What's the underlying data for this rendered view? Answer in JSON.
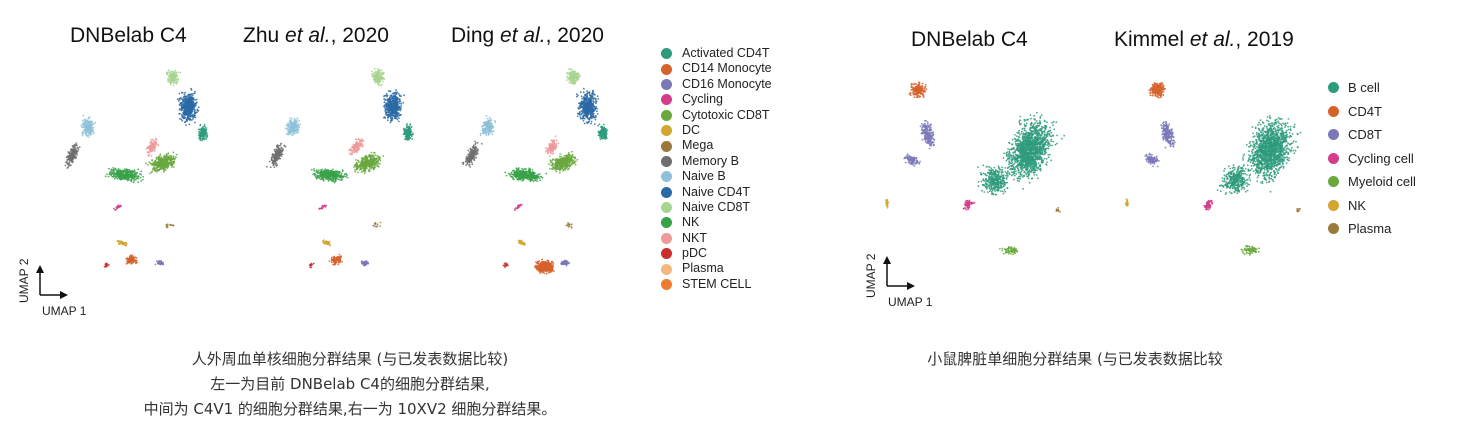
{
  "figure_left": {
    "panel_titles": [
      {
        "main": "DNBelab C4",
        "italic": "",
        "suffix": ""
      },
      {
        "main": "Zhu ",
        "italic": "et al.",
        "suffix": ", 2020"
      },
      {
        "main": "Ding ",
        "italic": "et al.",
        "suffix": ", 2020"
      }
    ],
    "axis_x_label": "UMAP 1",
    "axis_y_label": "UMAP 2",
    "legend": [
      {
        "label": "Activated CD4T",
        "color": "#2e9b7c"
      },
      {
        "label": "CD14 Monocyte",
        "color": "#d6622a"
      },
      {
        "label": "CD16 Monocyte",
        "color": "#7b78b8"
      },
      {
        "label": "Cycling",
        "color": "#d33d8a"
      },
      {
        "label": "Cytotoxic CD8T",
        "color": "#6aa83e"
      },
      {
        "label": "DC",
        "color": "#d4a531"
      },
      {
        "label": "Mega",
        "color": "#9a7a3a"
      },
      {
        "label": "Memory B",
        "color": "#6e6e6e"
      },
      {
        "label": "Naive B",
        "color": "#8ec1d9"
      },
      {
        "label": "Naive CD4T",
        "color": "#2a6aa6"
      },
      {
        "label": "Naive CD8T",
        "color": "#a8d491"
      },
      {
        "label": "NK",
        "color": "#38a249"
      },
      {
        "label": "NKT",
        "color": "#ee9a9a"
      },
      {
        "label": "pDC",
        "color": "#cc2d2d"
      },
      {
        "label": "Plasma",
        "color": "#f2b87c"
      },
      {
        "label": "STEM CELL",
        "color": "#ee7b2f"
      }
    ],
    "caption_lines": [
      "人外周血单核细胞分群结果 (与已发表数据比较)",
      "左一为目前 DNBelab C4的细胞分群结果,",
      "中间为 C4V1 的细胞分群结果,右一为 10XV2 细胞分群结果。"
    ]
  },
  "figure_right": {
    "panel_titles": [
      {
        "main": "DNBelab C4",
        "italic": "",
        "suffix": ""
      },
      {
        "main": "Kimmel ",
        "italic": "et al.",
        "suffix": ", 2019"
      }
    ],
    "axis_x_label": "UMAP 1",
    "axis_y_label": "UMAP 2",
    "legend": [
      {
        "label": "B cell",
        "color": "#2e9b7c"
      },
      {
        "label": "CD4T",
        "color": "#d6622a"
      },
      {
        "label": "CD8T",
        "color": "#7b78b8"
      },
      {
        "label": "Cycling cell",
        "color": "#d33d8a"
      },
      {
        "label": "Myeloid cell",
        "color": "#6aa83e"
      },
      {
        "label": "NK",
        "color": "#d4a531"
      },
      {
        "label": "Plasma",
        "color": "#9a7a3a"
      }
    ],
    "caption_lines": [
      "小鼠脾脏单细胞分群结果 (与已发表数据比较"
    ]
  },
  "chart_data": [
    {
      "type": "scatter",
      "title": "DNBelab C4",
      "xlabel": "UMAP 1",
      "ylabel": "UMAP 2",
      "series": [
        {
          "name": "Activated CD4T"
        },
        {
          "name": "CD14 Monocyte"
        },
        {
          "name": "CD16 Monocyte"
        },
        {
          "name": "Cycling"
        },
        {
          "name": "Cytotoxic CD8T"
        },
        {
          "name": "DC"
        },
        {
          "name": "Mega"
        },
        {
          "name": "Memory B"
        },
        {
          "name": "Naive B"
        },
        {
          "name": "Naive CD4T"
        },
        {
          "name": "Naive CD8T"
        },
        {
          "name": "NK"
        },
        {
          "name": "NKT"
        },
        {
          "name": "pDC"
        },
        {
          "name": "Plasma"
        },
        {
          "name": "STEM CELL"
        }
      ],
      "grid": false,
      "legend": "right"
    },
    {
      "type": "scatter",
      "title": "Zhu et al., 2020",
      "grid": false
    },
    {
      "type": "scatter",
      "title": "Ding et al., 2020",
      "grid": false
    },
    {
      "type": "scatter",
      "title": "DNBelab C4",
      "xlabel": "UMAP 1",
      "ylabel": "UMAP 2",
      "series": [
        {
          "name": "B cell"
        },
        {
          "name": "CD4T"
        },
        {
          "name": "CD8T"
        },
        {
          "name": "Cycling cell"
        },
        {
          "name": "Myeloid cell"
        },
        {
          "name": "NK"
        },
        {
          "name": "Plasma"
        }
      ],
      "grid": false,
      "legend": "right"
    },
    {
      "type": "scatter",
      "title": "Kimmel et al., 2019",
      "grid": false
    }
  ]
}
